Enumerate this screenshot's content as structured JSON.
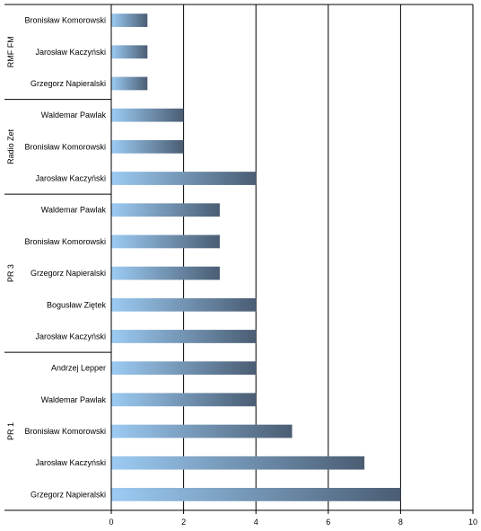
{
  "chart_data": {
    "type": "bar",
    "orientation": "horizontal",
    "groups": [
      {
        "name": "RMF FM",
        "categories": [
          "Bronisław Komorowski",
          "Jarosław Kaczyński",
          "Grzegorz Napieralski"
        ],
        "values": [
          1,
          1,
          1
        ]
      },
      {
        "name": "Radio Zet",
        "categories": [
          "Waldemar Pawlak",
          "Bronisław Komorowski",
          "Jarosław Kaczyński"
        ],
        "values": [
          2,
          2,
          4
        ]
      },
      {
        "name": "PR 3",
        "categories": [
          "Waldemar Pawlak",
          "Bronisław Komorowski",
          "Grzegorz Napieralski",
          "Bogusław Ziętek",
          "Jarosław Kaczyński"
        ],
        "values": [
          3,
          3,
          3,
          4,
          4
        ]
      },
      {
        "name": "PR 1",
        "categories": [
          "Andrzej Lepper",
          "Waldemar Pawlak",
          "Bronisław Komorowski",
          "Jarosław Kaczyński",
          "Grzegorz Napieralski"
        ],
        "values": [
          4,
          4,
          5,
          7,
          8
        ]
      }
    ],
    "xticks": [
      "0",
      "2",
      "4",
      "6",
      "8",
      "10"
    ],
    "xlim": [
      0,
      10
    ],
    "grid": "vertical major",
    "legend": "none",
    "colors": {
      "bar_light": "#9ccbf3",
      "bar_dark": "#4a5d73",
      "grid": "#000000"
    }
  }
}
